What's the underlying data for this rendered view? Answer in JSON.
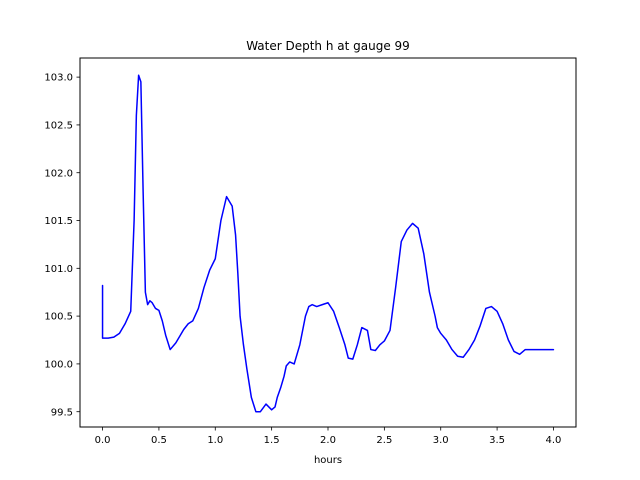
{
  "chart_data": {
    "type": "line",
    "title": "Water Depth h at gauge 99",
    "xlabel": "hours",
    "ylabel": "",
    "xlim": [
      -0.2,
      4.2
    ],
    "ylim": [
      99.34,
      103.2
    ],
    "xticks": [
      0.0,
      0.5,
      1.0,
      1.5,
      2.0,
      2.5,
      3.0,
      3.5,
      4.0
    ],
    "xtick_labels": [
      "0.0",
      "0.5",
      "1.0",
      "1.5",
      "2.0",
      "2.5",
      "3.0",
      "3.5",
      "4.0"
    ],
    "yticks": [
      99.5,
      100.0,
      100.5,
      101.0,
      101.5,
      102.0,
      102.5,
      103.0
    ],
    "ytick_labels": [
      "99.5",
      "100.0",
      "100.5",
      "101.0",
      "101.5",
      "102.0",
      "102.5",
      "103.0"
    ],
    "grid": false,
    "series": [
      {
        "color": "#0000ff",
        "x": [
          0.0,
          0.0,
          0.05,
          0.1,
          0.15,
          0.2,
          0.25,
          0.28,
          0.3,
          0.32,
          0.34,
          0.36,
          0.38,
          0.4,
          0.42,
          0.44,
          0.47,
          0.5,
          0.53,
          0.56,
          0.6,
          0.65,
          0.69,
          0.72,
          0.76,
          0.8,
          0.85,
          0.9,
          0.95,
          1.0,
          1.05,
          1.1,
          1.15,
          1.18,
          1.2,
          1.22,
          1.25,
          1.28,
          1.32,
          1.36,
          1.4,
          1.45,
          1.5,
          1.53,
          1.55,
          1.58,
          1.61,
          1.63,
          1.66,
          1.7,
          1.75,
          1.8,
          1.83,
          1.86,
          1.9,
          1.95,
          2.0,
          2.05,
          2.1,
          2.15,
          2.18,
          2.22,
          2.26,
          2.3,
          2.35,
          2.38,
          2.42,
          2.46,
          2.5,
          2.55,
          2.6,
          2.65,
          2.7,
          2.75,
          2.8,
          2.85,
          2.9,
          2.95,
          2.97,
          3.0,
          3.05,
          3.1,
          3.15,
          3.2,
          3.25,
          3.3,
          3.35,
          3.4,
          3.45,
          3.5,
          3.55,
          3.6,
          3.65,
          3.7,
          3.75,
          3.8,
          3.85,
          3.9,
          3.95,
          4.0
        ],
        "y": [
          100.82,
          100.27,
          100.27,
          100.28,
          100.32,
          100.42,
          100.55,
          101.5,
          102.6,
          103.02,
          102.95,
          101.8,
          100.75,
          100.62,
          100.66,
          100.64,
          100.58,
          100.56,
          100.45,
          100.3,
          100.15,
          100.22,
          100.3,
          100.36,
          100.42,
          100.45,
          100.58,
          100.8,
          100.98,
          101.1,
          101.5,
          101.75,
          101.65,
          101.35,
          100.95,
          100.5,
          100.2,
          99.95,
          99.65,
          99.5,
          99.5,
          99.58,
          99.52,
          99.55,
          99.65,
          99.75,
          99.87,
          99.98,
          100.02,
          100.0,
          100.2,
          100.5,
          100.6,
          100.62,
          100.6,
          100.62,
          100.64,
          100.55,
          100.38,
          100.2,
          100.06,
          100.05,
          100.2,
          100.38,
          100.35,
          100.15,
          100.14,
          100.2,
          100.24,
          100.35,
          100.8,
          101.28,
          101.4,
          101.47,
          101.42,
          101.15,
          100.75,
          100.5,
          100.38,
          100.32,
          100.25,
          100.15,
          100.08,
          100.07,
          100.15,
          100.25,
          100.4,
          100.58,
          100.6,
          100.55,
          100.42,
          100.25,
          100.13,
          100.1,
          100.15,
          100.15,
          100.15,
          100.15,
          100.15,
          100.15
        ]
      }
    ]
  }
}
